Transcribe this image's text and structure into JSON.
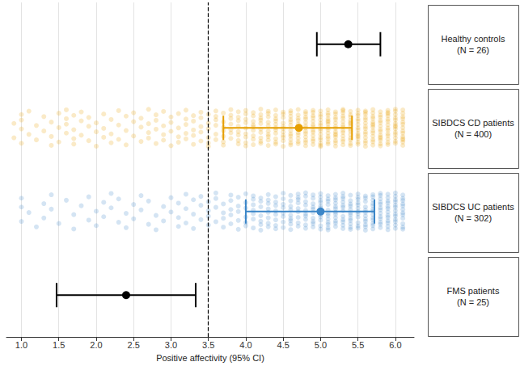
{
  "chart_data": {
    "type": "forest",
    "x_label": "Positive affectivity (95% CI)",
    "xlim": [
      0.8,
      6.25
    ],
    "xticks": [
      {
        "value": 1,
        "label": "1.0"
      },
      {
        "value": 1.5,
        "label": "1.5"
      },
      {
        "value": 2,
        "label": "2.0"
      },
      {
        "value": 2.5,
        "label": "2.5"
      },
      {
        "value": 3,
        "label": "3.0"
      },
      {
        "value": 3.5,
        "label": "3.5"
      },
      {
        "value": 4,
        "label": "4.0"
      },
      {
        "value": 4.5,
        "label": "4.5"
      },
      {
        "value": 5,
        "label": "5.0"
      },
      {
        "value": 5.5,
        "label": "5.5"
      },
      {
        "value": 6,
        "label": "6.0"
      }
    ],
    "grid": true,
    "reference_line": {
      "x": 3.5
    },
    "series": [
      {
        "name": "Healthy controls\n(N = 26)",
        "color": "#000000",
        "mean": 5.37,
        "ci": [
          4.95,
          5.8
        ]
      },
      {
        "name": "SIBDCS CD patients\n(N = 400)",
        "color": "#e69f00",
        "mean": 4.71,
        "ci": [
          3.7,
          5.42
        ],
        "points": [
          {
            "x": 0.9,
            "count": 2
          },
          {
            "x": 1.0,
            "count": 4
          },
          {
            "x": 1.1,
            "count": 2
          },
          {
            "x": 1.2,
            "count": 2
          },
          {
            "x": 1.3,
            "count": 2
          },
          {
            "x": 1.4,
            "count": 3
          },
          {
            "x": 1.5,
            "count": 3
          },
          {
            "x": 1.6,
            "count": 4
          },
          {
            "x": 1.7,
            "count": 4
          },
          {
            "x": 1.8,
            "count": 3
          },
          {
            "x": 1.9,
            "count": 3
          },
          {
            "x": 2.0,
            "count": 3
          },
          {
            "x": 2.1,
            "count": 3
          },
          {
            "x": 2.2,
            "count": 3
          },
          {
            "x": 2.3,
            "count": 3
          },
          {
            "x": 2.4,
            "count": 3
          },
          {
            "x": 2.5,
            "count": 3
          },
          {
            "x": 2.6,
            "count": 3
          },
          {
            "x": 2.7,
            "count": 4
          },
          {
            "x": 2.8,
            "count": 4
          },
          {
            "x": 2.9,
            "count": 4
          },
          {
            "x": 3.0,
            "count": 4
          },
          {
            "x": 3.1,
            "count": 4
          },
          {
            "x": 3.2,
            "count": 5
          },
          {
            "x": 3.3,
            "count": 5
          },
          {
            "x": 3.4,
            "count": 5
          },
          {
            "x": 3.5,
            "count": 6
          },
          {
            "x": 3.6,
            "count": 6
          },
          {
            "x": 3.7,
            "count": 7
          },
          {
            "x": 3.8,
            "count": 7
          },
          {
            "x": 3.9,
            "count": 8
          },
          {
            "x": 4.0,
            "count": 9
          },
          {
            "x": 4.1,
            "count": 9
          },
          {
            "x": 4.2,
            "count": 10
          },
          {
            "x": 4.3,
            "count": 10
          },
          {
            "x": 4.4,
            "count": 11
          },
          {
            "x": 4.5,
            "count": 11
          },
          {
            "x": 4.6,
            "count": 12
          },
          {
            "x": 4.7,
            "count": 12
          },
          {
            "x": 4.8,
            "count": 13
          },
          {
            "x": 4.9,
            "count": 13
          },
          {
            "x": 5.0,
            "count": 14
          },
          {
            "x": 5.1,
            "count": 14
          },
          {
            "x": 5.2,
            "count": 14
          },
          {
            "x": 5.3,
            "count": 14
          },
          {
            "x": 5.4,
            "count": 14
          },
          {
            "x": 5.5,
            "count": 14
          },
          {
            "x": 5.6,
            "count": 14
          },
          {
            "x": 5.7,
            "count": 14
          },
          {
            "x": 5.8,
            "count": 14
          },
          {
            "x": 5.9,
            "count": 14
          },
          {
            "x": 6.0,
            "count": 14
          },
          {
            "x": 6.1,
            "count": 14
          }
        ]
      },
      {
        "name": "SIBDCS UC patients\n(N = 302)",
        "color": "#3b86c8",
        "mean": 5.0,
        "ci": [
          4.0,
          5.72
        ],
        "points": [
          {
            "x": 1.0,
            "count": 3
          },
          {
            "x": 1.1,
            "count": 1
          },
          {
            "x": 1.2,
            "count": 1
          },
          {
            "x": 1.3,
            "count": 2
          },
          {
            "x": 1.4,
            "count": 2
          },
          {
            "x": 1.5,
            "count": 1
          },
          {
            "x": 1.6,
            "count": 1
          },
          {
            "x": 1.7,
            "count": 2
          },
          {
            "x": 1.8,
            "count": 1
          },
          {
            "x": 1.9,
            "count": 2
          },
          {
            "x": 2.0,
            "count": 2
          },
          {
            "x": 2.1,
            "count": 2
          },
          {
            "x": 2.2,
            "count": 2
          },
          {
            "x": 2.3,
            "count": 2
          },
          {
            "x": 2.4,
            "count": 2
          },
          {
            "x": 2.5,
            "count": 2
          },
          {
            "x": 2.6,
            "count": 2
          },
          {
            "x": 2.7,
            "count": 2
          },
          {
            "x": 2.8,
            "count": 2
          },
          {
            "x": 2.9,
            "count": 2
          },
          {
            "x": 3.0,
            "count": 2
          },
          {
            "x": 3.1,
            "count": 3
          },
          {
            "x": 3.2,
            "count": 3
          },
          {
            "x": 3.3,
            "count": 3
          },
          {
            "x": 3.4,
            "count": 3
          },
          {
            "x": 3.5,
            "count": 4
          },
          {
            "x": 3.6,
            "count": 4
          },
          {
            "x": 3.7,
            "count": 4
          },
          {
            "x": 3.8,
            "count": 5
          },
          {
            "x": 3.9,
            "count": 5
          },
          {
            "x": 4.0,
            "count": 6
          },
          {
            "x": 4.1,
            "count": 7
          },
          {
            "x": 4.2,
            "count": 7
          },
          {
            "x": 4.3,
            "count": 8
          },
          {
            "x": 4.4,
            "count": 8
          },
          {
            "x": 4.5,
            "count": 8
          },
          {
            "x": 4.6,
            "count": 9
          },
          {
            "x": 4.7,
            "count": 9
          },
          {
            "x": 4.8,
            "count": 10
          },
          {
            "x": 4.9,
            "count": 10
          },
          {
            "x": 5.0,
            "count": 12
          },
          {
            "x": 5.1,
            "count": 12
          },
          {
            "x": 5.2,
            "count": 12
          },
          {
            "x": 5.3,
            "count": 12
          },
          {
            "x": 5.4,
            "count": 12
          },
          {
            "x": 5.5,
            "count": 12
          },
          {
            "x": 5.6,
            "count": 12
          },
          {
            "x": 5.7,
            "count": 13
          },
          {
            "x": 5.8,
            "count": 13
          },
          {
            "x": 5.9,
            "count": 13
          },
          {
            "x": 6.0,
            "count": 13
          },
          {
            "x": 6.1,
            "count": 12
          }
        ]
      },
      {
        "name": "FMS patients\n(N = 25)",
        "color": "#000000",
        "mean": 2.4,
        "ci": [
          1.47,
          3.33
        ]
      }
    ]
  }
}
